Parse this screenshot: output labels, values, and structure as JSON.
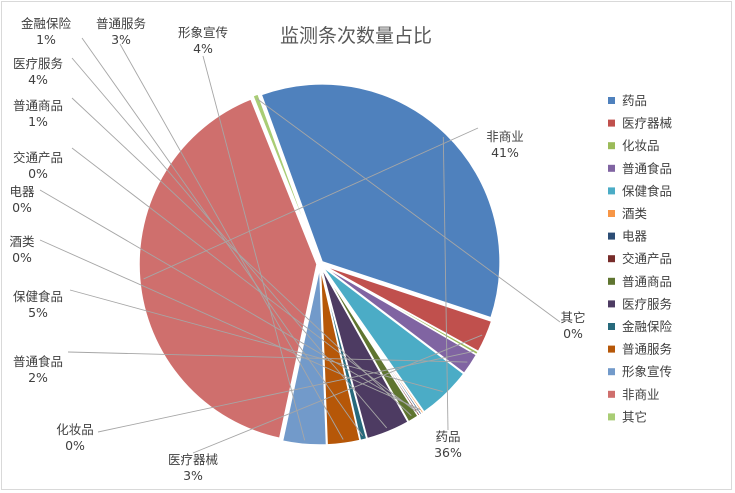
{
  "chart_data": {
    "type": "pie",
    "title": "监测条次数量占比",
    "legend_position": "right",
    "slices": [
      {
        "name": "药品",
        "value": 36,
        "label": "36%",
        "color": "#4f81bd"
      },
      {
        "name": "医疗器械",
        "value": 3,
        "label": "3%",
        "color": "#c0504d"
      },
      {
        "name": "化妆品",
        "value": 0.3,
        "label": "0%",
        "color": "#9bbb59"
      },
      {
        "name": "普通食品",
        "value": 2,
        "label": "2%",
        "color": "#8064a2"
      },
      {
        "name": "保健食品",
        "value": 5,
        "label": "5%",
        "color": "#4bacc6"
      },
      {
        "name": "酒类",
        "value": 0.2,
        "label": "0%",
        "color": "#f79646"
      },
      {
        "name": "电器",
        "value": 0.2,
        "label": "0%",
        "color": "#2c4d75"
      },
      {
        "name": "交通产品",
        "value": 0.2,
        "label": "0%",
        "color": "#772c2a"
      },
      {
        "name": "普通商品",
        "value": 1,
        "label": "1%",
        "color": "#5f7530"
      },
      {
        "name": "医疗服务",
        "value": 4,
        "label": "4%",
        "color": "#4d3b62"
      },
      {
        "name": "金融保险",
        "value": 0.6,
        "label": "1%",
        "color": "#276a7c"
      },
      {
        "name": "普通服务",
        "value": 3,
        "label": "3%",
        "color": "#b65708"
      },
      {
        "name": "形象宣传",
        "value": 4,
        "label": "4%",
        "color": "#729aca"
      },
      {
        "name": "非商业",
        "value": 41,
        "label": "41%",
        "color": "#cf6f6d"
      },
      {
        "name": "其它",
        "value": 0.5,
        "label": "0%",
        "color": "#a9cd75"
      }
    ]
  }
}
